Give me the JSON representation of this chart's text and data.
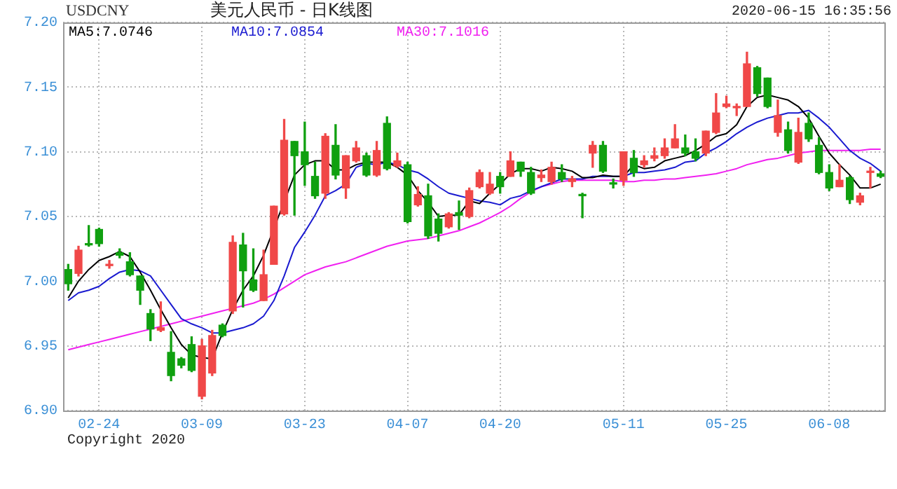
{
  "chart_data": {
    "type": "candlestick",
    "title": "美元人民币 - 日K线图",
    "subtitle": "USDCNY",
    "annotations": [
      "2020-06-15 16:35:56",
      "Copyright 2020"
    ],
    "categories": [
      null,
      null,
      null,
      "02-24",
      null,
      null,
      null,
      null,
      null,
      null,
      null,
      null,
      null,
      "03-09",
      null,
      null,
      null,
      null,
      null,
      null,
      null,
      null,
      null,
      "03-23",
      null,
      null,
      null,
      null,
      null,
      null,
      null,
      null,
      null,
      "04-07",
      null,
      null,
      null,
      null,
      null,
      null,
      null,
      null,
      "04-20",
      null,
      null,
      null,
      null,
      null,
      null,
      null,
      null,
      null,
      null,
      null,
      "05-11",
      null,
      null,
      null,
      null,
      null,
      null,
      null,
      null,
      null,
      "05-25",
      null,
      null,
      null,
      null,
      null,
      null,
      null,
      null,
      null,
      "06-08",
      null,
      null,
      null,
      null,
      null
    ],
    "ohlc": [
      [
        7.009,
        7.013,
        6.993,
        6.998
      ],
      [
        7.006,
        7.027,
        7.004,
        7.024
      ],
      [
        7.029,
        7.043,
        7.027,
        7.028
      ],
      [
        7.04,
        7.041,
        7.027,
        7.029
      ],
      [
        7.012,
        7.016,
        7.01,
        7.013
      ],
      [
        7.022,
        7.025,
        7.018,
        7.02
      ],
      [
        7.015,
        7.022,
        7.004,
        7.005
      ],
      [
        7.004,
        7.004,
        6.982,
        6.993
      ],
      [
        6.975,
        6.978,
        6.954,
        6.963
      ],
      [
        6.962,
        6.984,
        6.961,
        6.964
      ],
      [
        6.945,
        6.961,
        6.923,
        6.927
      ],
      [
        6.94,
        6.941,
        6.933,
        6.935
      ],
      [
        6.951,
        6.957,
        6.93,
        6.931
      ],
      [
        6.911,
        6.955,
        6.909,
        6.95
      ],
      [
        6.929,
        6.962,
        6.927,
        6.958
      ],
      [
        6.966,
        6.967,
        6.957,
        6.958
      ],
      [
        6.977,
        7.035,
        6.975,
        7.03
      ],
      [
        7.028,
        7.037,
        6.98,
        7.008
      ],
      [
        7.001,
        7.025,
        6.992,
        6.993
      ],
      [
        6.985,
        7.024,
        6.985,
        7.005
      ],
      [
        7.013,
        7.058,
        7.013,
        7.058
      ],
      [
        7.052,
        7.125,
        7.051,
        7.109
      ],
      [
        7.108,
        7.108,
        7.051,
        7.097
      ],
      [
        7.1,
        7.123,
        7.074,
        7.09
      ],
      [
        7.081,
        7.092,
        7.064,
        7.066
      ],
      [
        7.068,
        7.114,
        7.064,
        7.112
      ],
      [
        7.105,
        7.121,
        7.079,
        7.082
      ],
      [
        7.072,
        7.097,
        7.064,
        7.097
      ],
      [
        7.093,
        7.108,
        7.092,
        7.103
      ],
      [
        7.097,
        7.099,
        7.081,
        7.082
      ],
      [
        7.082,
        7.108,
        7.081,
        7.101
      ],
      [
        7.122,
        7.127,
        7.086,
        7.087
      ],
      [
        7.089,
        7.099,
        7.088,
        7.093
      ],
      [
        7.09,
        7.092,
        7.045,
        7.046
      ],
      [
        7.059,
        7.073,
        7.058,
        7.067
      ],
      [
        7.066,
        7.075,
        7.033,
        7.035
      ],
      [
        7.048,
        7.052,
        7.031,
        7.037
      ],
      [
        7.042,
        7.053,
        7.041,
        7.052
      ],
      [
        7.053,
        7.062,
        7.04,
        7.051
      ],
      [
        7.05,
        7.072,
        7.049,
        7.07
      ],
      [
        7.073,
        7.086,
        7.072,
        7.084
      ],
      [
        7.068,
        7.084,
        7.067,
        7.075
      ],
      [
        7.081,
        7.084,
        7.068,
        7.073
      ],
      [
        7.081,
        7.1,
        7.081,
        7.093
      ],
      [
        7.092,
        7.092,
        7.081,
        7.085
      ],
      [
        7.084,
        7.088,
        7.067,
        7.068
      ],
      [
        7.08,
        7.086,
        7.077,
        7.082
      ],
      [
        7.077,
        7.092,
        7.075,
        7.088
      ],
      [
        7.084,
        7.09,
        7.077,
        7.079
      ],
      [
        7.077,
        7.081,
        7.073,
        7.079
      ],
      [
        7.067,
        7.068,
        7.049,
        7.066
      ],
      [
        7.099,
        7.108,
        7.088,
        7.105
      ],
      [
        7.105,
        7.108,
        7.084,
        7.085
      ],
      [
        7.076,
        7.079,
        7.072,
        7.075
      ],
      [
        7.078,
        7.1,
        7.074,
        7.1
      ],
      [
        7.095,
        7.101,
        7.081,
        7.084
      ],
      [
        7.09,
        7.097,
        7.088,
        7.093
      ],
      [
        7.095,
        7.103,
        7.093,
        7.097
      ],
      [
        7.097,
        7.11,
        7.095,
        7.103
      ],
      [
        7.103,
        7.121,
        7.103,
        7.11
      ],
      [
        7.103,
        7.113,
        7.097,
        7.099
      ],
      [
        7.1,
        7.11,
        7.093,
        7.095
      ],
      [
        7.099,
        7.116,
        7.097,
        7.116
      ],
      [
        7.115,
        7.145,
        7.114,
        7.13
      ],
      [
        7.135,
        7.143,
        7.134,
        7.137
      ],
      [
        7.134,
        7.137,
        7.128,
        7.135
      ],
      [
        7.135,
        7.177,
        7.135,
        7.168
      ],
      [
        7.165,
        7.166,
        7.143,
        7.145
      ],
      [
        7.157,
        7.157,
        7.134,
        7.135
      ],
      [
        7.115,
        7.14,
        7.112,
        7.128
      ],
      [
        7.117,
        7.123,
        7.099,
        7.101
      ],
      [
        7.092,
        7.126,
        7.091,
        7.115
      ],
      [
        7.122,
        7.13,
        7.108,
        7.11
      ],
      [
        7.105,
        7.111,
        7.083,
        7.084
      ],
      [
        7.084,
        7.09,
        7.07,
        7.072
      ],
      [
        7.073,
        7.09,
        7.073,
        7.078
      ],
      [
        7.08,
        7.081,
        7.06,
        7.063
      ],
      [
        7.061,
        7.068,
        7.059,
        7.066
      ],
      [
        7.084,
        7.088,
        7.072,
        7.085
      ],
      [
        7.083,
        7.085,
        7.08,
        7.081
      ]
    ],
    "colors": [
      "#10a010",
      "#f04848",
      "#10a010",
      "#10a010",
      "#f04848",
      "#10a010",
      "#10a010",
      "#10a010",
      "#10a010",
      "#f04848",
      "#10a010",
      "#10a010",
      "#10a010",
      "#f04848",
      "#f04848",
      "#10a010",
      "#f04848",
      "#10a010",
      "#10a010",
      "#f04848",
      "#f04848",
      "#f04848",
      "#10a010",
      "#10a010",
      "#10a010",
      "#f04848",
      "#10a010",
      "#f04848",
      "#f04848",
      "#10a010",
      "#f04848",
      "#10a010",
      "#f04848",
      "#10a010",
      "#f04848",
      "#10a010",
      "#10a010",
      "#f04848",
      "#10a010",
      "#f04848",
      "#f04848",
      "#f04848",
      "#10a010",
      "#f04848",
      "#10a010",
      "#10a010",
      "#f04848",
      "#f04848",
      "#10a010",
      "#f04848",
      "#10a010",
      "#f04848",
      "#10a010",
      "#10a010",
      "#f04848",
      "#10a010",
      "#f04848",
      "#f04848",
      "#f04848",
      "#f04848",
      "#10a010",
      "#10a010",
      "#f04848",
      "#f04848",
      "#f04848",
      "#f04848",
      "#f04848",
      "#10a010",
      "#10a010",
      "#f04848",
      "#10a010",
      "#f04848",
      "#10a010",
      "#10a010",
      "#10a010",
      "#f04848",
      "#10a010",
      "#f04848",
      "#f04848",
      "#10a010"
    ],
    "series": [
      {
        "name": "MA5:7.0746",
        "type": "line",
        "color": "#000000",
        "values": [
          6.987,
          7.0,
          7.009,
          7.016,
          7.019,
          7.023,
          7.019,
          7.007,
          6.993,
          6.978,
          6.964,
          6.951,
          6.943,
          6.941,
          6.94,
          6.96,
          6.978,
          6.993,
          7.004,
          7.02,
          null,
          null,
          7.082,
          7.09,
          7.093,
          7.093,
          7.086,
          7.086,
          7.09,
          7.092,
          7.092,
          7.092,
          7.088,
          7.082,
          7.07,
          7.061,
          7.05,
          7.051,
          7.051,
          7.062,
          7.06,
          7.068,
          7.075,
          7.083,
          7.087,
          7.087,
          7.085,
          7.088,
          7.087,
          7.085,
          7.08,
          7.08,
          7.082,
          7.081,
          7.081,
          7.09,
          7.087,
          7.088,
          7.093,
          7.095,
          7.097,
          7.101,
          7.106,
          7.112,
          7.114,
          7.121,
          7.135,
          7.142,
          7.144,
          7.142,
          7.14,
          7.135,
          7.126,
          7.112,
          7.099,
          7.09,
          7.082,
          7.072,
          7.072,
          7.075
        ]
      },
      {
        "name": "MA10:7.0854",
        "type": "line",
        "color": "#1a1ad0",
        "values": [
          6.985,
          6.991,
          6.993,
          6.996,
          7.002,
          7.007,
          7.009,
          7.008,
          7.004,
          6.993,
          6.982,
          6.971,
          6.967,
          6.964,
          6.96,
          6.96,
          6.962,
          6.964,
          6.967,
          6.973,
          6.985,
          7.004,
          7.026,
          7.038,
          7.051,
          7.066,
          7.07,
          7.075,
          7.088,
          7.091,
          7.09,
          7.092,
          7.09,
          7.086,
          7.084,
          7.079,
          7.073,
          7.068,
          7.066,
          7.064,
          7.062,
          7.061,
          7.059,
          7.064,
          7.066,
          7.07,
          7.073,
          7.076,
          7.079,
          7.079,
          7.079,
          7.081,
          7.081,
          7.081,
          7.081,
          7.084,
          7.084,
          7.085,
          7.086,
          7.088,
          7.092,
          7.093,
          7.099,
          7.103,
          7.108,
          7.114,
          7.119,
          7.123,
          7.126,
          7.128,
          7.13,
          7.13,
          7.132,
          7.126,
          7.119,
          7.11,
          7.101,
          7.095,
          7.091,
          7.085
        ]
      },
      {
        "name": "MA30:7.1016",
        "type": "line",
        "color": "#f020f0",
        "values": [
          6.947,
          6.949,
          6.951,
          6.953,
          6.955,
          6.957,
          6.959,
          6.961,
          6.963,
          6.965,
          6.967,
          6.969,
          6.971,
          6.973,
          6.975,
          6.977,
          6.979,
          6.981,
          6.983,
          6.986,
          6.99,
          6.995,
          7.0,
          7.005,
          7.008,
          7.011,
          7.013,
          7.015,
          7.018,
          7.021,
          7.024,
          7.027,
          7.029,
          7.031,
          7.032,
          7.033,
          7.035,
          7.037,
          7.039,
          7.042,
          7.045,
          7.049,
          7.053,
          7.058,
          7.064,
          7.069,
          7.073,
          7.075,
          7.077,
          7.078,
          7.078,
          7.078,
          7.078,
          7.078,
          7.077,
          7.077,
          7.078,
          7.078,
          7.079,
          7.079,
          7.08,
          7.081,
          7.082,
          7.083,
          7.085,
          7.087,
          7.09,
          7.092,
          7.094,
          7.095,
          7.097,
          7.099,
          7.1,
          7.101,
          7.101,
          7.101,
          7.101,
          7.101,
          7.102,
          7.102
        ]
      }
    ],
    "ylim": [
      6.9,
      7.2
    ],
    "yticks": [
      {
        "value": 6.9,
        "label": "6.90"
      },
      {
        "value": 6.95,
        "label": "6.95"
      },
      {
        "value": 7.0,
        "label": "7.00"
      },
      {
        "value": 7.05,
        "label": "7.05"
      },
      {
        "value": 7.1,
        "label": "7.10"
      },
      {
        "value": 7.15,
        "label": "7.15"
      },
      {
        "value": 7.2,
        "label": "7.20"
      }
    ],
    "grid": true,
    "legend": "top",
    "marker": "none",
    "line_style": "solid"
  }
}
